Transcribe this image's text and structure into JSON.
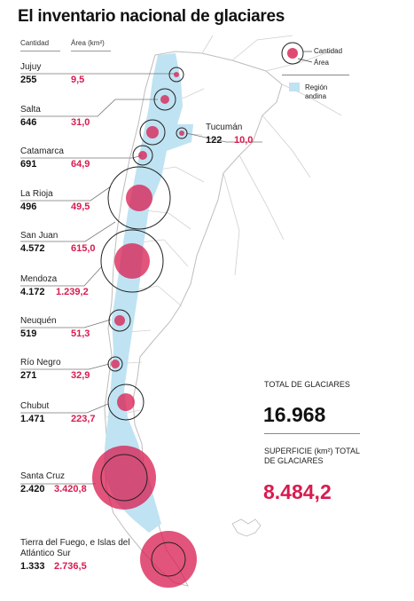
{
  "title": "El inventario nacional de glaciares",
  "columns": {
    "cantidad": "Cantidad",
    "area": "Área (km²)"
  },
  "legend": {
    "cantidad": "Cantidad",
    "area": "Área",
    "region": "Región andina"
  },
  "provinces": [
    {
      "name": "Jujuy",
      "count": "255",
      "area": "9,5"
    },
    {
      "name": "Salta",
      "count": "646",
      "area": "31,0"
    },
    {
      "name": "Tucumán",
      "count": "122",
      "area": "10,0"
    },
    {
      "name": "Catamarca",
      "count": "691",
      "area": "64,9"
    },
    {
      "name": "La Rioja",
      "count": "496",
      "area": "49,5"
    },
    {
      "name": "San Juan",
      "count": "4.572",
      "area": "615,0"
    },
    {
      "name": "Mendoza",
      "count": "4.172",
      "area": "1.239,2"
    },
    {
      "name": "Neuquén",
      "count": "519",
      "area": "51,3"
    },
    {
      "name": "Río Negro",
      "count": "271",
      "area": "32,9"
    },
    {
      "name": "Chubut",
      "count": "1.471",
      "area": "223,7"
    },
    {
      "name": "Santa Cruz",
      "count": "2.420",
      "area": "3.420,8"
    },
    {
      "name": "Tierra del Fuego, e Islas del Atlántico Sur",
      "count": "1.333",
      "area": "2.736,5"
    }
  ],
  "totals": {
    "glaciares_label": "TOTAL DE GLACIARES",
    "glaciares_value": "16.968",
    "superficie_label": "SUPERFICIE (km²) TOTAL DE GLACIARES",
    "superficie_value": "8.484,2"
  },
  "colors": {
    "area": "#d81b4f",
    "andina": "#bfe3f2",
    "land": "#ffffff",
    "border": "#bdbdbd"
  }
}
